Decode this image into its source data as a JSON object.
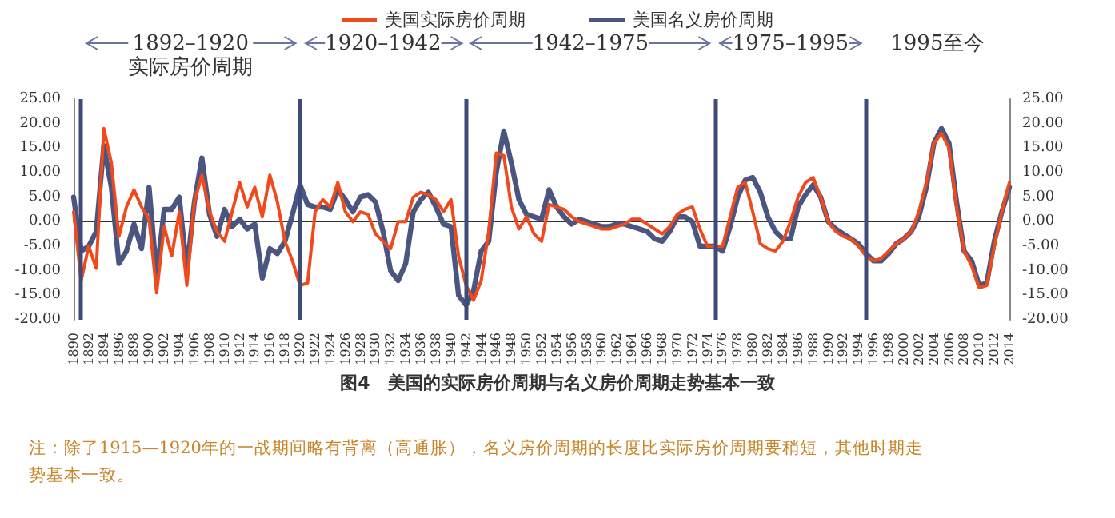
{
  "chart_data": {
    "type": "line",
    "title": "图4　美国的实际房价周期与名义房价周期走势基本一致",
    "annotations": [
      "1892–1920\n实际房价周期",
      "1920–1942",
      "1942–1975",
      "1975–1995",
      "1995至今",
      "注：除了1915—1920年的一战期间略有背离（高通胀），名义房价周期的长度比实际房价周期要稍短，其他时期走势基本一致。"
    ],
    "x": [
      1890,
      1891,
      1892,
      1893,
      1894,
      1895,
      1896,
      1897,
      1898,
      1899,
      1900,
      1901,
      1902,
      1903,
      1904,
      1905,
      1906,
      1907,
      1908,
      1909,
      1910,
      1911,
      1912,
      1913,
      1914,
      1915,
      1916,
      1917,
      1918,
      1919,
      1920,
      1921,
      1922,
      1923,
      1924,
      1925,
      1926,
      1927,
      1928,
      1929,
      1930,
      1931,
      1932,
      1933,
      1934,
      1935,
      1936,
      1937,
      1938,
      1939,
      1940,
      1941,
      1942,
      1943,
      1944,
      1945,
      1946,
      1947,
      1948,
      1949,
      1950,
      1951,
      1952,
      1953,
      1954,
      1955,
      1956,
      1957,
      1958,
      1959,
      1960,
      1961,
      1962,
      1963,
      1964,
      1965,
      1966,
      1967,
      1968,
      1969,
      1970,
      1971,
      1972,
      1973,
      1974,
      1975,
      1976,
      1977,
      1978,
      1979,
      1980,
      1981,
      1982,
      1983,
      1984,
      1985,
      1986,
      1987,
      1988,
      1989,
      1990,
      1991,
      1992,
      1993,
      1994,
      1995,
      1996,
      1997,
      1998,
      1999,
      2000,
      2001,
      2002,
      2003,
      2004,
      2005,
      2006,
      2007,
      2008,
      2009,
      2010,
      2011,
      2012,
      2013,
      2014
    ],
    "series": [
      {
        "name": "美国实际房价周期",
        "color": "#f04a1c",
        "values": [
          2,
          -12,
          -5,
          -9.5,
          19,
          12,
          -3,
          3,
          6.5,
          3,
          0.5,
          -14.5,
          -1,
          -7,
          2,
          -13,
          4,
          9.5,
          2,
          -2,
          -4,
          2,
          8,
          3,
          7,
          1,
          9.5,
          4,
          -4,
          -8,
          -13,
          -12.5,
          2,
          4.5,
          3,
          8,
          2,
          0,
          2,
          1.5,
          -2.5,
          -4,
          -5.5,
          0,
          0,
          5,
          6,
          5.5,
          4.5,
          2,
          4.5,
          -7,
          -13,
          -16,
          -12,
          -2,
          14,
          13.5,
          3,
          -1.5,
          1,
          -2.5,
          -4,
          3.5,
          3,
          2.5,
          1,
          0,
          -0.5,
          -1,
          -1.5,
          -1.5,
          -1,
          -0.5,
          0.5,
          0.5,
          -0.5,
          -1.5,
          -2.5,
          -1,
          1.5,
          2.5,
          3,
          -1.5,
          -5,
          -5,
          -5,
          1,
          7,
          8,
          2,
          -4.5,
          -5.5,
          -6,
          -4,
          0,
          5,
          8,
          9,
          5,
          0,
          -2,
          -3,
          -3.5,
          -5,
          -7,
          -8,
          -7.5,
          -6,
          -4.5,
          -3.5,
          -2,
          2,
          8,
          16,
          18,
          15,
          3,
          -6,
          -9,
          -13.5,
          -13,
          -5,
          2,
          8
        ]
      },
      {
        "name": "美国名义房价周期",
        "color": "#4a5580",
        "values": [
          5,
          -6,
          -5,
          -2,
          15.5,
          7,
          -8.5,
          -6,
          -0.5,
          -5.5,
          7,
          -11,
          2.5,
          2.5,
          5,
          -10,
          4,
          13,
          1.5,
          -3,
          2.5,
          -1,
          0.5,
          -1.5,
          -0.5,
          -11.5,
          -5.5,
          -6.5,
          -4,
          1.5,
          7.5,
          3.5,
          3,
          3,
          2.5,
          6.5,
          4.5,
          2,
          5,
          5.5,
          4,
          -2,
          -10,
          -12,
          -8.5,
          2,
          4.5,
          6,
          3,
          -0.5,
          -1,
          -15,
          -17,
          -14,
          -6,
          -4,
          10,
          18.5,
          12,
          4.5,
          1.5,
          1,
          0.5,
          6.5,
          3,
          1,
          -0.5,
          0.5,
          0,
          -0.5,
          -1,
          -1,
          -0.5,
          -0.5,
          -1,
          -1.5,
          -2,
          -3.5,
          -4,
          -2,
          1,
          1,
          0,
          -5,
          -5,
          -5,
          -6,
          -1,
          5,
          8.5,
          9,
          6,
          1,
          -2,
          -3.5,
          -3.5,
          3,
          5.5,
          7.5,
          5,
          0,
          -1.5,
          -2.5,
          -3.5,
          -4.5,
          -6.5,
          -8,
          -8,
          -6.5,
          -4.5,
          -3.5,
          -2,
          1,
          7,
          16,
          19,
          16,
          4,
          -6,
          -8,
          -13,
          -12.5,
          -4,
          2,
          7
        ]
      }
    ],
    "xlim": [
      1890,
      2014
    ],
    "xticks": [
      1890,
      1892,
      1894,
      1896,
      1898,
      1900,
      1902,
      1904,
      1906,
      1908,
      1910,
      1912,
      1914,
      1916,
      1918,
      1920,
      1922,
      1924,
      1926,
      1928,
      1930,
      1932,
      1934,
      1936,
      1938,
      1940,
      1942,
      1944,
      1946,
      1948,
      1950,
      1952,
      1954,
      1956,
      1958,
      1960,
      1962,
      1964,
      1966,
      1968,
      1970,
      1972,
      1974,
      1976,
      1978,
      1980,
      1982,
      1984,
      1986,
      1988,
      1990,
      1992,
      1994,
      1996,
      1998,
      2000,
      2002,
      2004,
      2006,
      2008,
      2010,
      2012,
      2014
    ],
    "ylim": [
      -20,
      25
    ],
    "yticks": [
      {
        "value": -20,
        "label": "-20.00"
      },
      {
        "value": -15,
        "label": "-15.00"
      },
      {
        "value": -10,
        "label": "-10.00"
      },
      {
        "value": -5,
        "label": "-5.00"
      },
      {
        "value": 0,
        "label": "0.00"
      },
      {
        "value": 5,
        "label": "5.00"
      },
      {
        "value": 10,
        "label": "10.00"
      },
      {
        "value": 15,
        "label": "15.00"
      },
      {
        "value": 20,
        "label": "20.00"
      },
      {
        "value": 25,
        "label": "25.00"
      }
    ],
    "y2lim": [
      -20,
      25
    ],
    "y2ticks": [
      {
        "value": -20,
        "label": "-20.00"
      },
      {
        "value": -15,
        "label": "-15.00"
      },
      {
        "value": -10,
        "label": "-10.00"
      },
      {
        "value": -5,
        "label": "-5.00"
      },
      {
        "value": 0,
        "label": "0.00"
      },
      {
        "value": 5,
        "label": "5.00"
      },
      {
        "value": 10,
        "label": "10.00"
      },
      {
        "value": 15,
        "label": "15.00"
      },
      {
        "value": 20,
        "label": "20.00"
      },
      {
        "value": 25,
        "label": "25.00"
      }
    ],
    "ref_lines": [
      {
        "axis": "x",
        "value": 1891,
        "color": "#3d4a7a"
      },
      {
        "axis": "x",
        "value": 1920,
        "color": "#3d4a7a"
      },
      {
        "axis": "x",
        "value": 1942,
        "color": "#3d4a7a"
      },
      {
        "axis": "x",
        "value": 1975,
        "color": "#3d4a7a"
      },
      {
        "axis": "x",
        "value": 1995,
        "color": "#3d4a7a"
      }
    ],
    "legend": "top",
    "grid": false,
    "marker": "none",
    "line_style": "solid"
  }
}
